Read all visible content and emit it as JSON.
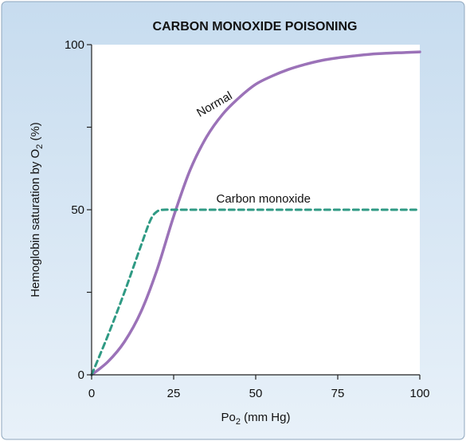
{
  "chart_data": {
    "type": "line",
    "title": "CARBON MONOXIDE POISONING",
    "xlabel": {
      "main": "Po",
      "sub": "2",
      "rest": " (mm Hg)"
    },
    "ylabel": {
      "main": "Hemoglobin saturation by O",
      "sub": "2",
      "rest": " (%)"
    },
    "xlim": [
      0,
      100
    ],
    "ylim": [
      0,
      100
    ],
    "x_ticks": [
      0,
      25,
      50,
      75,
      100
    ],
    "y_ticks": [
      0,
      25,
      50,
      75,
      100
    ],
    "x_tick_labels": [
      "0",
      "25",
      "50",
      "75",
      "100"
    ],
    "y_tick_labels": [
      "0",
      "",
      "50",
      "",
      "100"
    ],
    "grid": false,
    "series": [
      {
        "name": "Normal",
        "style": "solid",
        "color": "#9b72b8",
        "x": [
          0,
          5,
          10,
          15,
          20,
          25,
          30,
          35,
          40,
          45,
          50,
          55,
          60,
          65,
          70,
          75,
          80,
          85,
          90,
          95,
          100
        ],
        "y": [
          0,
          4,
          10,
          19,
          32,
          48,
          62,
          72,
          79,
          84,
          88,
          90.5,
          92.5,
          94,
          95.2,
          96,
          96.6,
          97.1,
          97.4,
          97.6,
          97.8
        ]
      },
      {
        "name": "Carbon monoxide",
        "style": "dashed",
        "color": "#2f9a84",
        "x": [
          0,
          5,
          10,
          15,
          18,
          20,
          22,
          25,
          30,
          40,
          50,
          60,
          70,
          80,
          90,
          100
        ],
        "y": [
          0,
          12,
          25,
          39,
          47,
          49.5,
          50,
          50,
          50,
          50,
          50,
          50,
          50,
          50,
          50,
          50
        ]
      }
    ]
  }
}
